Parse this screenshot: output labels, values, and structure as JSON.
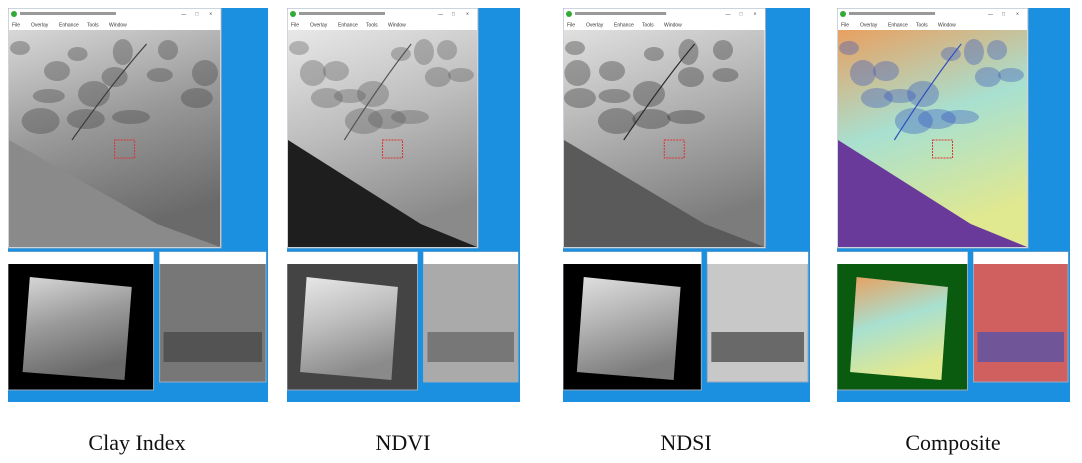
{
  "panels": [
    {
      "caption": "Clay Index",
      "menu": [
        "File",
        "Overlay",
        "Enhance",
        "Tools",
        "Window"
      ]
    },
    {
      "caption": "NDVI",
      "menu": [
        "File",
        "Overlay",
        "Enhance",
        "Tools",
        "Window"
      ]
    },
    {
      "caption": "NDSI",
      "menu": [
        "File",
        "Overlay",
        "Enhance",
        "Tools",
        "Window"
      ]
    },
    {
      "caption": "Composite",
      "menu": [
        "File",
        "Overlay",
        "Enhance",
        "Tools",
        "Window"
      ]
    }
  ]
}
